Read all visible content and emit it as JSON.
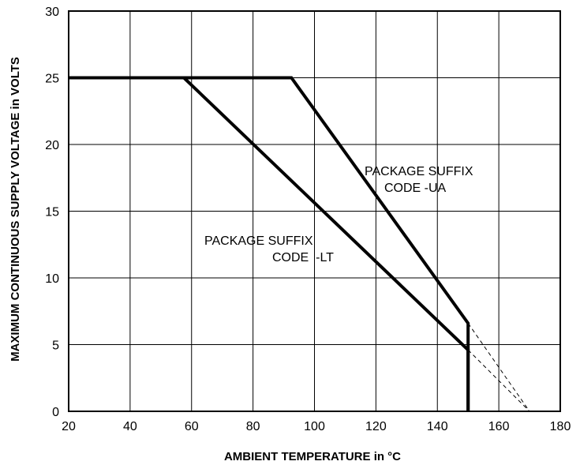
{
  "chart_data": {
    "type": "line",
    "xlabel": "AMBIENT TEMPERATURE in °C",
    "ylabel": "MAXIMUM CONTINUOUS SUPPLY VOLTAGE in VOLTS",
    "xlim": [
      20,
      180
    ],
    "ylim": [
      0,
      30
    ],
    "x_ticks": [
      20,
      40,
      60,
      80,
      100,
      120,
      140,
      160,
      180
    ],
    "y_ticks": [
      0,
      5,
      10,
      15,
      20,
      25,
      30
    ],
    "grid": true,
    "series": [
      {
        "name": "PACKAGE SUFFIX CODE -UA",
        "style": "solid-thick",
        "x": [
          20,
          92.5,
          150,
          150
        ],
        "y": [
          25,
          25,
          6.6,
          0
        ]
      },
      {
        "name": "PACKAGE SUFFIX CODE -LT",
        "style": "solid-thick",
        "x": [
          20,
          57.5,
          150,
          150
        ],
        "y": [
          25,
          25,
          4.6,
          0
        ]
      },
      {
        "style": "dashed",
        "x": [
          150,
          170
        ],
        "y": [
          6.6,
          0
        ]
      },
      {
        "style": "dashed",
        "x": [
          150,
          170
        ],
        "y": [
          4.6,
          0
        ]
      }
    ],
    "annotations": [
      {
        "lines": [
          "PACKAGE SUFFIX",
          "CODE -UA"
        ],
        "series": 0
      },
      {
        "lines": [
          "PACKAGE SUFFIX",
          "CODE  -LT"
        ],
        "series": 1
      }
    ]
  }
}
